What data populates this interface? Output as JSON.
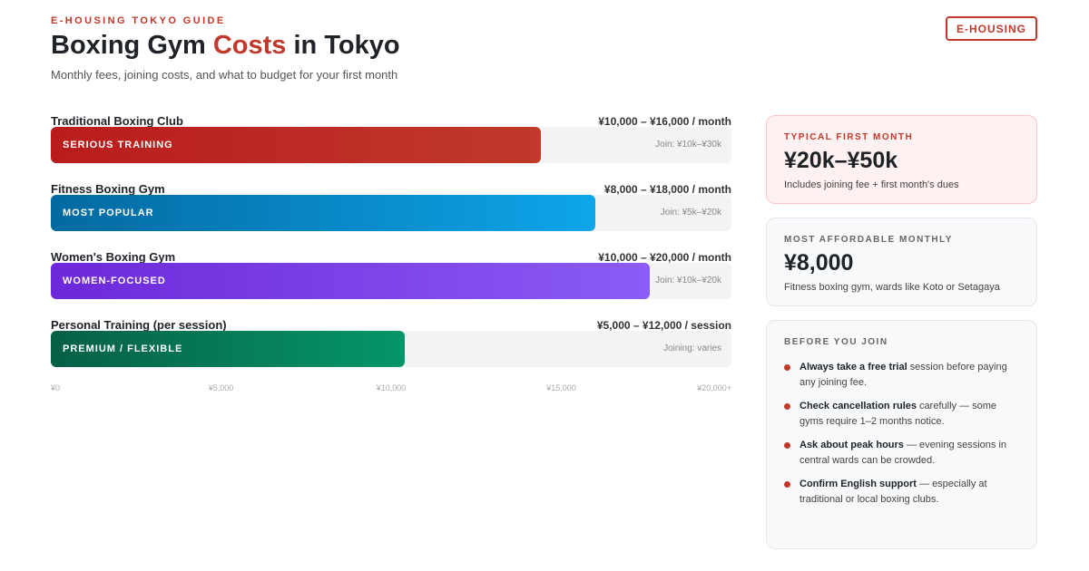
{
  "header": {
    "kicker": "E-HOUSING TOKYO GUIDE",
    "title": [
      "Boxing Gym ",
      "Costs",
      " in Tokyo"
    ],
    "subtitle": "Monthly fees, joining costs, and what to budget for your first month",
    "badge": "E-HOUSING"
  },
  "bars": {
    "xlim": [
      0,
      20000
    ],
    "ticks": [
      {
        "value": 0,
        "label": "¥0"
      },
      {
        "value": 5000,
        "label": "¥5,000"
      },
      {
        "value": 10000,
        "label": "¥10,000"
      },
      {
        "value": 15000,
        "label": "¥15,000"
      },
      {
        "value": 20000,
        "label": "¥20,000+"
      }
    ],
    "rows": [
      {
        "name": "Traditional Boxing Club",
        "price": "¥10,000 – ¥16,000 / month",
        "tag": "SERIOUS TRAINING",
        "join": "Join: ¥10k–¥30k",
        "value": 14400,
        "colors": [
          "#b91c1c",
          "#c0392b"
        ]
      },
      {
        "name": "Fitness Boxing Gym",
        "price": "¥8,000 – ¥18,000 / month",
        "tag": "MOST POPULAR",
        "join": "Join: ¥5k–¥20k",
        "value": 16000,
        "colors": [
          "#0369a1",
          "#0ea5e9"
        ]
      },
      {
        "name": "Women's Boxing Gym",
        "price": "¥10,000 – ¥20,000 / month",
        "tag": "WOMEN-FOCUSED",
        "join": "Join: ¥10k–¥20k",
        "value": 17600,
        "colors": [
          "#6d28d9",
          "#8b5cf6"
        ]
      },
      {
        "name": "Personal Training (per session)",
        "price": "¥5,000 – ¥12,000 / session",
        "tag": "PREMIUM / FLEXIBLE",
        "join": "Joining: varies",
        "value": 10400,
        "colors": [
          "#065f46",
          "#059669"
        ]
      }
    ]
  },
  "cards": [
    {
      "label": "TYPICAL FIRST MONTH",
      "value": "¥20k–¥50k",
      "note": "Includes joining fee + first month's dues"
    },
    {
      "label": "MOST AFFORDABLE MONTHLY",
      "value": "¥8,000",
      "note": "Fitness boxing gym, wards like Koto or Setagaya"
    }
  ],
  "tips": {
    "title": "BEFORE YOU JOIN",
    "items": [
      {
        "bold": "Always take a free trial",
        "text": " session before paying any joining fee."
      },
      {
        "bold": "Check cancellation rules",
        "text": " carefully — some gyms require 1–2 months notice."
      },
      {
        "bold": "Ask about peak hours",
        "text": " — evening sessions in central wards can be crowded."
      },
      {
        "bold": "Confirm English support",
        "text": " — especially at traditional or local boxing clubs."
      }
    ]
  }
}
